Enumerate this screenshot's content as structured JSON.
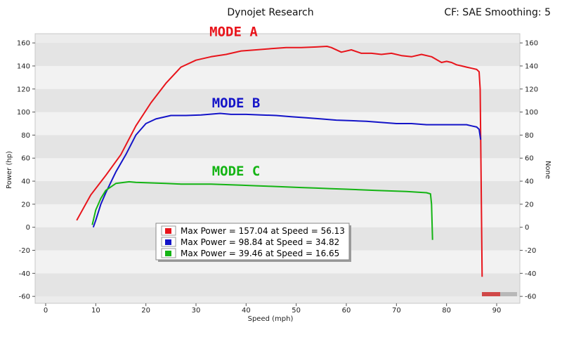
{
  "header": {
    "title": "Dynojet Research",
    "info": "CF: SAE Smoothing: 5"
  },
  "chart_data": {
    "type": "line",
    "title": "Dynojet Research",
    "xlabel": "Speed (mph)",
    "ylabel": "Power (hp)",
    "ylabel_right": "None",
    "xlim": [
      0,
      90
    ],
    "ylim": [
      -60,
      160
    ],
    "xticks": [
      0,
      10,
      20,
      30,
      40,
      50,
      60,
      70,
      80,
      90
    ],
    "yticks": [
      -60,
      -40,
      -20,
      0,
      20,
      40,
      60,
      80,
      100,
      120,
      140,
      160
    ],
    "grid": "horizontal bands",
    "legend_position": "lower-center",
    "series": [
      {
        "name": "MODE A",
        "color": "#e8141b",
        "label_at": [
          37.5,
          166
        ],
        "x": [
          6.2,
          9,
          12,
          15,
          18,
          21,
          24,
          27,
          30,
          33,
          36,
          39,
          42,
          45,
          48,
          51,
          54,
          56.13,
          57,
          59,
          61,
          63,
          65,
          67,
          69,
          71,
          73,
          75,
          77,
          79,
          80,
          81,
          82,
          83,
          84,
          85,
          86,
          86.5,
          86.7,
          86.9,
          87.1
        ],
        "y": [
          6,
          28,
          45,
          63,
          88,
          108,
          125,
          139,
          145,
          148,
          150,
          153,
          154,
          155,
          156,
          156,
          156.5,
          157.04,
          156,
          152,
          154,
          151,
          151,
          150,
          151,
          149,
          148,
          150,
          148,
          143,
          144,
          143,
          141,
          140,
          139,
          138,
          137,
          135,
          120,
          40,
          -43
        ]
      },
      {
        "name": "MODE B",
        "color": "#1414c8",
        "label_at": [
          38,
          104
        ],
        "x": [
          9.5,
          10,
          11,
          12,
          14,
          16,
          18,
          20,
          22,
          25,
          28,
          31,
          34.82,
          37,
          40,
          43,
          46,
          49,
          52,
          55,
          58,
          61,
          64,
          67,
          70,
          73,
          76,
          79,
          82,
          84,
          85,
          86,
          86.5,
          86.8
        ],
        "y": [
          0,
          6,
          20,
          30,
          48,
          63,
          80,
          90,
          94,
          97,
          97,
          97.5,
          98.84,
          98,
          98,
          97.5,
          97,
          96,
          95,
          94,
          93,
          92.5,
          92,
          91,
          90,
          90,
          89,
          89,
          89,
          89,
          88,
          87,
          85,
          76
        ]
      },
      {
        "name": "MODE C",
        "color": "#14b414",
        "label_at": [
          38,
          45
        ],
        "x": [
          9.3,
          10,
          11,
          12,
          14,
          16.65,
          18,
          21,
          24,
          27,
          30,
          33,
          36,
          39,
          42,
          45,
          48,
          51,
          54,
          57,
          60,
          63,
          66,
          69,
          72,
          74,
          76,
          76.8,
          77,
          77.2
        ],
        "y": [
          2,
          15,
          25,
          32,
          38,
          39.46,
          39,
          38.5,
          38,
          37.5,
          37.5,
          37.5,
          37,
          36.5,
          36,
          35.5,
          35,
          34.5,
          34,
          33.5,
          33,
          32.5,
          32,
          31.5,
          31,
          30.5,
          30,
          29,
          20,
          -11
        ]
      }
    ],
    "legend": [
      {
        "text": "Max Power = 157.04 at Speed = 56.13",
        "color": "#e8141b"
      },
      {
        "text": "Max Power = 98.84 at Speed = 34.82",
        "color": "#1414c8"
      },
      {
        "text": "Max Power = 39.46 at Speed = 16.65",
        "color": "#14b414"
      }
    ]
  }
}
